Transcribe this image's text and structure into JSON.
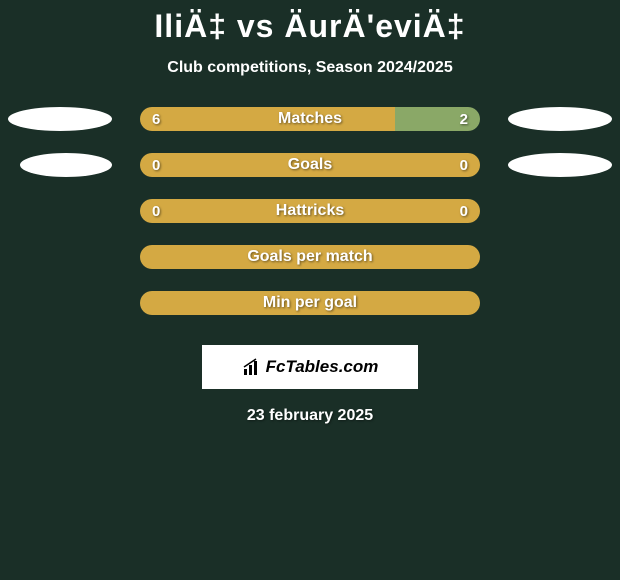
{
  "title": "IliÄ‡ vs ÄurÄ'eviÄ‡",
  "subtitle": "Club competitions, Season 2024/2025",
  "stats": [
    {
      "label": "Matches",
      "left_value": "6",
      "right_value": "2",
      "left_width": 75,
      "right_width": 25,
      "left_color": "#d4a943",
      "right_color": "#8aa867",
      "show_ellipses": true,
      "show_values": true
    },
    {
      "label": "Goals",
      "left_value": "0",
      "right_value": "0",
      "left_width": 50,
      "right_width": 50,
      "left_color": "#d4a943",
      "right_color": "#d4a943",
      "show_ellipses": true,
      "show_values": true,
      "ellipse_offset": true
    },
    {
      "label": "Hattricks",
      "left_value": "0",
      "right_value": "0",
      "left_width": 50,
      "right_width": 50,
      "left_color": "#d4a943",
      "right_color": "#d4a943",
      "show_ellipses": false,
      "show_values": true
    },
    {
      "label": "Goals per match",
      "left_value": "",
      "right_value": "",
      "left_width": 100,
      "right_width": 0,
      "left_color": "#d4a943",
      "right_color": "#d4a943",
      "show_ellipses": false,
      "show_values": false
    },
    {
      "label": "Min per goal",
      "left_value": "",
      "right_value": "",
      "left_width": 100,
      "right_width": 0,
      "left_color": "#d4a943",
      "right_color": "#d4a943",
      "show_ellipses": false,
      "show_values": false
    }
  ],
  "logo_text": "FcTables.com",
  "date": "23 february 2025",
  "colors": {
    "background": "#1a2f27",
    "bar_primary": "#d4a943",
    "bar_secondary": "#8aa867",
    "text": "#ffffff",
    "ellipse": "#ffffff",
    "logo_bg": "#ffffff",
    "logo_text": "#000000"
  }
}
